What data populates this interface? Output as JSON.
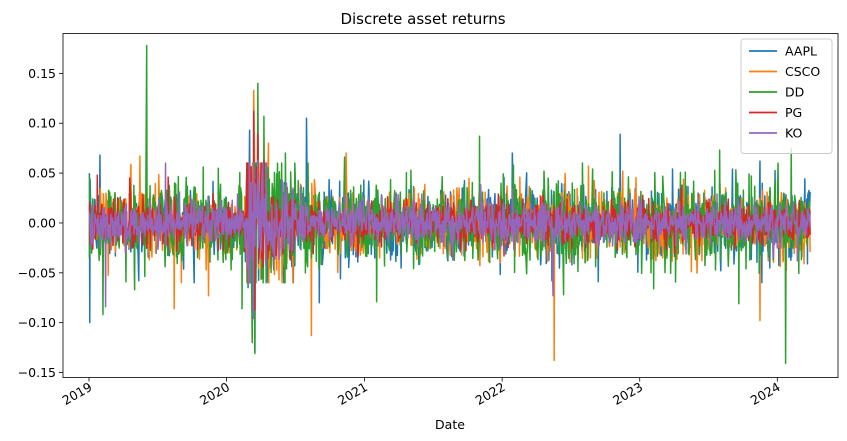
{
  "chart_data": {
    "type": "line",
    "title": "Discrete asset returns",
    "xlabel": "Date",
    "ylabel": "",
    "xlim": [
      "2018-10-24",
      "2024-06-10"
    ],
    "ylim": [
      -0.155,
      0.19
    ],
    "x_ticks": [
      "2019",
      "2020",
      "2021",
      "2022",
      "2023",
      "2024"
    ],
    "y_ticks": [
      0.15,
      0.1,
      0.05,
      0.0,
      -0.05,
      -0.1,
      -0.15
    ],
    "y_tick_labels": [
      "0.15",
      "0.10",
      "0.05",
      "0.00",
      "−0.05",
      "−0.10",
      "−0.15"
    ],
    "grid": false,
    "legend_position": "top-right",
    "date_range": [
      "2019-01-02",
      "2024-03-28"
    ],
    "series": [
      {
        "name": "AAPL",
        "color": "#1f77b4",
        "volatility": 0.018,
        "spikes": [
          [
            "2019-01-03",
            -0.1
          ],
          [
            "2019-01-04",
            0.043
          ],
          [
            "2019-01-30",
            0.068
          ],
          [
            "2019-05-13",
            -0.058
          ],
          [
            "2020-02-27",
            -0.065
          ],
          [
            "2020-03-02",
            0.093
          ],
          [
            "2020-03-13",
            0.12
          ],
          [
            "2020-03-16",
            -0.129
          ],
          [
            "2020-03-24",
            0.1
          ],
          [
            "2020-07-31",
            0.105
          ],
          [
            "2020-09-03",
            -0.08
          ],
          [
            "2020-10-29",
            -0.056
          ],
          [
            "2021-01-28",
            -0.035
          ],
          [
            "2022-01-28",
            0.07
          ],
          [
            "2022-04-29",
            -0.037
          ],
          [
            "2022-05-13",
            -0.058
          ],
          [
            "2022-09-13",
            -0.059
          ],
          [
            "2022-11-10",
            0.089
          ],
          [
            "2023-02-03",
            0.025
          ],
          [
            "2023-08-04",
            -0.048
          ],
          [
            "2023-11-16",
            0.062
          ],
          [
            "2024-03-21",
            -0.041
          ],
          [
            "2024-03-05",
            -0.028
          ]
        ]
      },
      {
        "name": "CSCO",
        "color": "#ff7f0e",
        "volatility": 0.017,
        "spikes": [
          [
            "2019-05-16",
            0.067
          ],
          [
            "2019-08-15",
            -0.086
          ],
          [
            "2019-11-14",
            -0.073
          ],
          [
            "2020-03-13",
            0.133
          ],
          [
            "2020-03-12",
            -0.092
          ],
          [
            "2020-04-21",
            0.08
          ],
          [
            "2020-08-13",
            -0.113
          ],
          [
            "2020-11-13",
            0.07
          ],
          [
            "2021-02-10",
            -0.035
          ],
          [
            "2021-05-13",
            0.035
          ],
          [
            "2021-08-19",
            0.028
          ],
          [
            "2022-02-17",
            0.046
          ],
          [
            "2022-05-19",
            -0.138
          ],
          [
            "2022-08-18",
            0.057
          ],
          [
            "2022-11-17",
            0.052
          ],
          [
            "2023-05-18",
            -0.049
          ],
          [
            "2023-08-17",
            0.035
          ],
          [
            "2023-11-16",
            -0.098
          ]
        ]
      },
      {
        "name": "DD",
        "color": "#2ca02c",
        "volatility": 0.021,
        "spikes": [
          [
            "2019-01-03",
            0.045
          ],
          [
            "2019-02-07",
            -0.092
          ],
          [
            "2019-06-03",
            0.178
          ],
          [
            "2019-05-02",
            -0.067
          ],
          [
            "2019-10-31",
            0.056
          ],
          [
            "2020-02-11",
            -0.086
          ],
          [
            "2020-03-16",
            -0.131
          ],
          [
            "2020-03-24",
            0.14
          ],
          [
            "2020-03-09",
            -0.12
          ],
          [
            "2020-04-09",
            0.107
          ],
          [
            "2020-06-05",
            0.07
          ],
          [
            "2020-08-04",
            0.06
          ],
          [
            "2020-11-09",
            0.066
          ],
          [
            "2021-02-02",
            -0.079
          ],
          [
            "2021-05-04",
            0.053
          ],
          [
            "2021-11-02",
            0.087
          ],
          [
            "2022-01-31",
            0.058
          ],
          [
            "2022-03-07",
            -0.051
          ],
          [
            "2022-05-03",
            0.045
          ],
          [
            "2022-08-02",
            0.06
          ],
          [
            "2022-06-13",
            -0.072
          ],
          [
            "2023-02-07",
            -0.066
          ],
          [
            "2023-05-02",
            0.051
          ],
          [
            "2023-09-21",
            -0.081
          ],
          [
            "2023-08-01",
            0.073
          ],
          [
            "2024-01-23",
            -0.141
          ],
          [
            "2024-02-07",
            0.075
          ]
        ]
      },
      {
        "name": "PG",
        "color": "#d62728",
        "volatility": 0.011,
        "spikes": [
          [
            "2019-01-23",
            0.048
          ],
          [
            "2019-04-19",
            0.045
          ],
          [
            "2019-07-30",
            0.046
          ],
          [
            "2020-03-13",
            0.112
          ],
          [
            "2020-03-12",
            -0.088
          ],
          [
            "2020-03-16",
            -0.087
          ],
          [
            "2020-03-24",
            0.089
          ],
          [
            "2020-04-09",
            0.063
          ],
          [
            "2021-01-20",
            0.022
          ],
          [
            "2022-04-20",
            0.028
          ],
          [
            "2022-10-19",
            0.024
          ],
          [
            "2023-04-21",
            0.035
          ]
        ]
      },
      {
        "name": "KO",
        "color": "#9467bd",
        "volatility": 0.011,
        "spikes": [
          [
            "2019-02-14",
            -0.084
          ],
          [
            "2019-07-23",
            0.06
          ],
          [
            "2020-03-12",
            -0.096
          ],
          [
            "2020-03-13",
            0.06
          ],
          [
            "2020-03-24",
            0.063
          ],
          [
            "2020-06-08",
            0.04
          ],
          [
            "2022-05-16",
            -0.073
          ],
          [
            "2020-01-30",
            0.029
          ]
        ]
      }
    ]
  }
}
